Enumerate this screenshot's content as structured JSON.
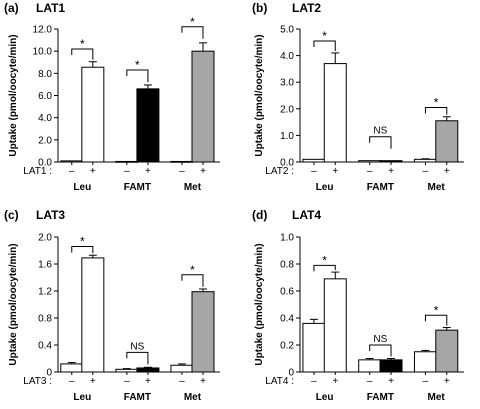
{
  "chart_data": [
    {
      "type": "bar",
      "panel_label": "(a)",
      "title": "LAT1",
      "ylabel": "Uptake (pmol/oocyte/min)",
      "ylim": [
        0,
        12
      ],
      "yticks": [
        "0.0",
        "2.0",
        "4.0",
        "6.0",
        "8.0",
        "10.0",
        "12.0"
      ],
      "ytick_values": [
        0,
        2,
        4,
        6,
        8,
        10,
        12
      ],
      "row_label": "LAT1 :",
      "categories": [
        "Leu",
        "FAMT",
        "Met"
      ],
      "conditions": [
        "–",
        "+"
      ],
      "values": [
        [
          0.1,
          8.55
        ],
        [
          0.05,
          6.6
        ],
        [
          0.05,
          10.0
        ]
      ],
      "errors": [
        [
          0.0,
          0.5
        ],
        [
          0.0,
          0.35
        ],
        [
          0.0,
          0.75
        ]
      ],
      "fill_colors": [
        "#ffffff",
        "#000000",
        "#a6a6a6"
      ],
      "significance": [
        "*",
        "*",
        "*"
      ],
      "sig_heights": [
        10.2,
        8.3,
        12.2
      ]
    },
    {
      "type": "bar",
      "panel_label": "(b)",
      "title": "LAT2",
      "ylabel": "Uptake (pmol/oocyte/min)",
      "ylim": [
        0,
        5.0
      ],
      "yticks": [
        "0.0",
        "1.0",
        "2.0",
        "3.0",
        "4.0",
        "5.0"
      ],
      "ytick_values": [
        0,
        1,
        2,
        3,
        4,
        5
      ],
      "row_label": "LAT2 :",
      "categories": [
        "Leu",
        "FAMT",
        "Met"
      ],
      "conditions": [
        "–",
        "+"
      ],
      "values": [
        [
          0.1,
          3.7
        ],
        [
          0.05,
          0.05
        ],
        [
          0.1,
          1.55
        ]
      ],
      "errors": [
        [
          0.0,
          0.4
        ],
        [
          0.0,
          0.0
        ],
        [
          0.02,
          0.15
        ]
      ],
      "fill_colors": [
        "#ffffff",
        "#000000",
        "#a6a6a6"
      ],
      "significance": [
        "*",
        "NS",
        "*"
      ],
      "sig_heights": [
        4.55,
        0.95,
        2.05
      ]
    },
    {
      "type": "bar",
      "panel_label": "(c)",
      "title": "LAT3",
      "ylabel": "Uptake (pmol/oocyte/min)",
      "ylim": [
        0,
        2.0
      ],
      "yticks": [
        "0",
        "0.4",
        "0.8",
        "1.2",
        "1.6",
        "2.0"
      ],
      "ytick_values": [
        0,
        0.4,
        0.8,
        1.2,
        1.6,
        2.0
      ],
      "row_label": "LAT3 :",
      "categories": [
        "Leu",
        "FAMT",
        "Met"
      ],
      "conditions": [
        "–",
        "+"
      ],
      "values": [
        [
          0.12,
          1.69
        ],
        [
          0.04,
          0.06
        ],
        [
          0.1,
          1.19
        ]
      ],
      "errors": [
        [
          0.02,
          0.04
        ],
        [
          0.01,
          0.01
        ],
        [
          0.02,
          0.04
        ]
      ],
      "fill_colors": [
        "#ffffff",
        "#000000",
        "#a6a6a6"
      ],
      "significance": [
        "*",
        "NS",
        "*"
      ],
      "sig_heights": [
        1.86,
        0.29,
        1.44
      ]
    },
    {
      "type": "bar",
      "panel_label": "(d)",
      "title": "LAT4",
      "ylabel": "Uptake (pmol/oocyte/min)",
      "ylim": [
        0,
        1.0
      ],
      "yticks": [
        "0",
        "0.2",
        "0.4",
        "0.6",
        "0.8",
        "1.0"
      ],
      "ytick_values": [
        0,
        0.2,
        0.4,
        0.6,
        0.8,
        1.0
      ],
      "row_label": "LAT4 :",
      "categories": [
        "Leu",
        "FAMT",
        "Met"
      ],
      "conditions": [
        "–",
        "+"
      ],
      "values": [
        [
          0.36,
          0.69
        ],
        [
          0.09,
          0.09
        ],
        [
          0.15,
          0.31
        ]
      ],
      "errors": [
        [
          0.03,
          0.05
        ],
        [
          0.01,
          0.01
        ],
        [
          0.01,
          0.02
        ]
      ],
      "fill_colors": [
        "#ffffff",
        "#000000",
        "#a6a6a6"
      ],
      "significance": [
        "*",
        "NS",
        "*"
      ],
      "sig_heights": [
        0.79,
        0.2,
        0.42
      ]
    }
  ]
}
